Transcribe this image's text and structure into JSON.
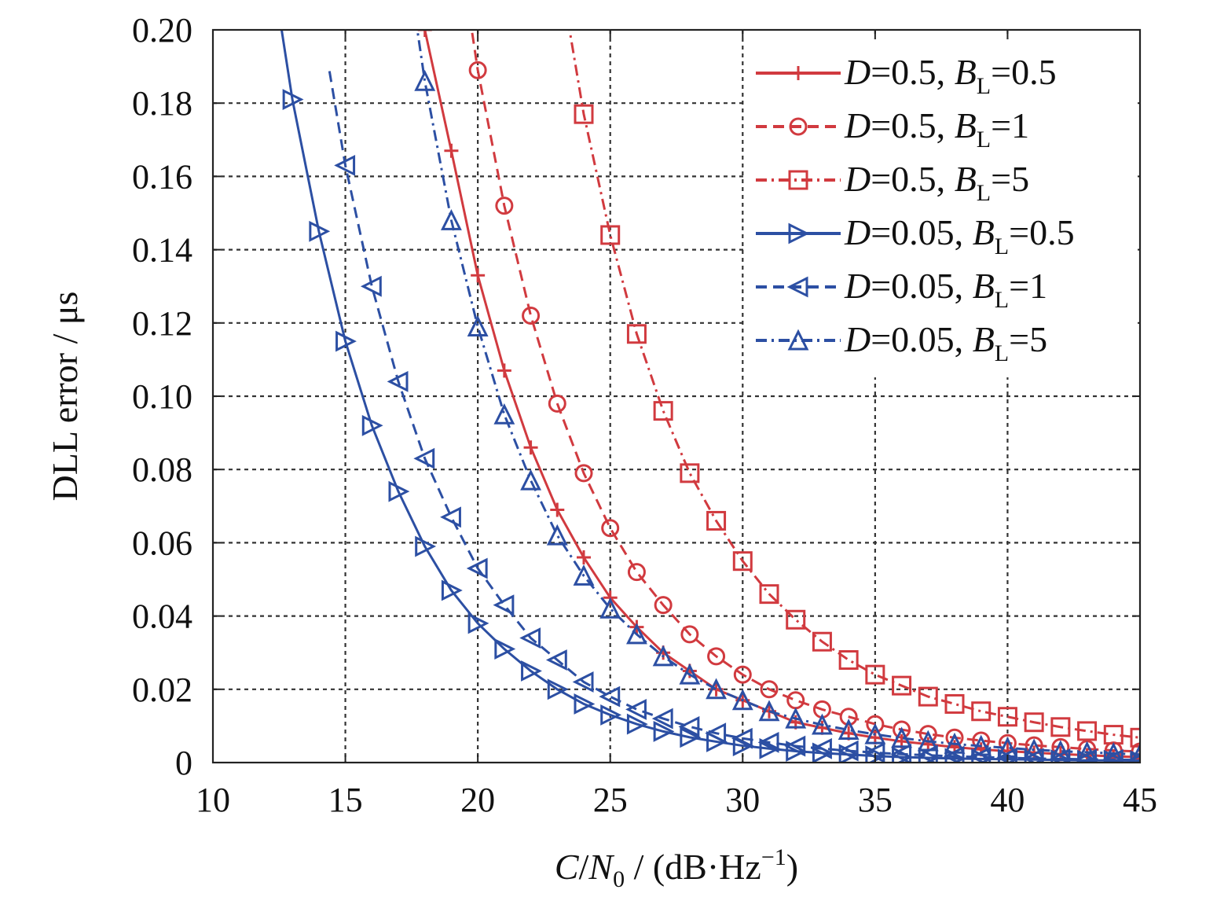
{
  "chart_data": {
    "type": "line",
    "title": "",
    "xlabel": {
      "pre": "C",
      "slash1": "/",
      "N": "N",
      "sub0": "0",
      "rest": " / (dB·Hz",
      "sup": "−1",
      "close": ")"
    },
    "ylabel": "DLL error / μs",
    "xlim": [
      10,
      45
    ],
    "ylim": [
      0,
      0.2
    ],
    "x_ticks": [
      "10",
      "15",
      "20",
      "25",
      "30",
      "35",
      "40",
      "45"
    ],
    "y_ticks": [
      "0",
      "0.02",
      "0.04",
      "0.06",
      "0.08",
      "0.10",
      "0.12",
      "0.14",
      "0.16",
      "0.18",
      "0.20"
    ],
    "grid": true,
    "legend_position": "top-right",
    "colors": {
      "red": "#d13a3f",
      "blue": "#2c4fa3"
    },
    "series": [
      {
        "label": {
          "D": "D",
          "dval": "=0.5, ",
          "B": "B",
          "sub": "L",
          "bval": "=0.5"
        },
        "color": "#d13a3f",
        "dash": "solid",
        "marker": "plus",
        "x": [
          18,
          19,
          20,
          21,
          22,
          23,
          24,
          25,
          26,
          27,
          28,
          29,
          30,
          31,
          32,
          33,
          34,
          35,
          36,
          37,
          38,
          39,
          40,
          41,
          42,
          43,
          44,
          45
        ],
        "y": [
          0.2,
          0.167,
          0.133,
          0.107,
          0.086,
          0.069,
          0.056,
          0.045,
          0.037,
          0.03,
          0.025,
          0.02,
          0.017,
          0.014,
          0.011,
          0.0095,
          0.008,
          0.0068,
          0.0058,
          0.005,
          0.0042,
          0.0036,
          0.0031,
          0.0027,
          0.0023,
          0.002,
          0.0017,
          0.0015
        ]
      },
      {
        "label": {
          "D": "D",
          "dval": "=0.5, ",
          "B": "B",
          "sub": "L",
          "bval": "=1"
        },
        "color": "#d13a3f",
        "dash": "dashed",
        "marker": "circle",
        "x": [
          20,
          21,
          22,
          23,
          24,
          25,
          26,
          27,
          28,
          29,
          30,
          31,
          32,
          33,
          34,
          35,
          36,
          37,
          38,
          39,
          40,
          41,
          42,
          43,
          44,
          45
        ],
        "y": [
          0.189,
          0.152,
          0.122,
          0.098,
          0.079,
          0.064,
          0.052,
          0.043,
          0.035,
          0.029,
          0.024,
          0.02,
          0.017,
          0.0145,
          0.0125,
          0.0105,
          0.009,
          0.0078,
          0.0068,
          0.006,
          0.0053,
          0.0047,
          0.0042,
          0.0037,
          0.0033,
          0.003
        ]
      },
      {
        "label": {
          "D": "D",
          "dval": "=0.5, ",
          "B": "B",
          "sub": "L",
          "bval": "=5"
        },
        "color": "#d13a3f",
        "dash": "dashdot",
        "marker": "square",
        "x": [
          24,
          25,
          26,
          27,
          28,
          29,
          30,
          31,
          32,
          33,
          34,
          35,
          36,
          37,
          38,
          39,
          40,
          41,
          42,
          43,
          44,
          45
        ],
        "y": [
          0.177,
          0.144,
          0.117,
          0.096,
          0.079,
          0.066,
          0.055,
          0.046,
          0.039,
          0.033,
          0.028,
          0.024,
          0.021,
          0.018,
          0.016,
          0.014,
          0.0125,
          0.011,
          0.0097,
          0.0086,
          0.0076,
          0.0068
        ]
      },
      {
        "label": {
          "D": "D",
          "dval": "=0.05, ",
          "B": "B",
          "sub": "L",
          "bval": "=0.5"
        },
        "color": "#2c4fa3",
        "dash": "solid",
        "marker": "tri-right",
        "x": [
          13,
          14,
          15,
          16,
          17,
          18,
          19,
          20,
          21,
          22,
          23,
          24,
          25,
          26,
          27,
          28,
          29,
          30,
          31,
          32,
          33,
          34,
          35,
          36,
          37,
          38,
          39,
          40,
          41,
          42,
          43,
          44,
          45
        ],
        "y": [
          0.181,
          0.145,
          0.115,
          0.092,
          0.074,
          0.059,
          0.047,
          0.038,
          0.031,
          0.025,
          0.02,
          0.016,
          0.013,
          0.0105,
          0.0085,
          0.0069,
          0.0057,
          0.0046,
          0.0038,
          0.0031,
          0.0026,
          0.0022,
          0.0018,
          0.0015,
          0.0013,
          0.0011,
          0.001,
          0.0009,
          0.0008,
          0.0007,
          0.0006,
          0.0006,
          0.0005
        ]
      },
      {
        "label": {
          "D": "D",
          "dval": "=0.05, ",
          "B": "B",
          "sub": "L",
          "bval": "=1"
        },
        "color": "#2c4fa3",
        "dash": "dashed",
        "marker": "tri-left",
        "x": [
          15,
          16,
          17,
          18,
          19,
          20,
          21,
          22,
          23,
          24,
          25,
          26,
          27,
          28,
          29,
          30,
          31,
          32,
          33,
          34,
          35,
          36,
          37,
          38,
          39,
          40,
          41,
          42,
          43,
          44,
          45
        ],
        "y": [
          0.163,
          0.13,
          0.104,
          0.083,
          0.067,
          0.053,
          0.043,
          0.034,
          0.028,
          0.022,
          0.018,
          0.0145,
          0.012,
          0.0098,
          0.008,
          0.0066,
          0.0055,
          0.0045,
          0.0038,
          0.0032,
          0.0027,
          0.0023,
          0.002,
          0.0017,
          0.0015,
          0.0013,
          0.0011,
          0.001,
          0.0009,
          0.0008,
          0.0007
        ]
      },
      {
        "label": {
          "D": "D",
          "dval": "=0.05, ",
          "B": "B",
          "sub": "L",
          "bval": "=5"
        },
        "color": "#2c4fa3",
        "dash": "dashdot",
        "marker": "tri-up",
        "x": [
          18,
          19,
          20,
          21,
          22,
          23,
          24,
          25,
          26,
          27,
          28,
          29,
          30,
          31,
          32,
          33,
          34,
          35,
          36,
          37,
          38,
          39,
          40,
          41,
          42,
          43,
          44,
          45
        ],
        "y": [
          0.186,
          0.148,
          0.119,
          0.095,
          0.077,
          0.062,
          0.051,
          0.042,
          0.035,
          0.029,
          0.024,
          0.02,
          0.017,
          0.014,
          0.012,
          0.0103,
          0.0089,
          0.0077,
          0.0067,
          0.0058,
          0.0051,
          0.0045,
          0.004,
          0.0035,
          0.0031,
          0.0028,
          0.0025,
          0.0022
        ]
      }
    ]
  }
}
